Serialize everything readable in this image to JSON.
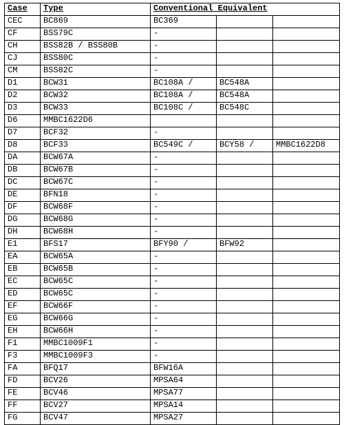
{
  "table": {
    "headers": {
      "case": "Case",
      "type": "Type",
      "conv": "Conventional Equivalent"
    },
    "rows": [
      {
        "case": "CEC",
        "type": "BC869",
        "conv": [
          "BC369",
          "",
          ""
        ]
      },
      {
        "case": "CF",
        "type": "BSS79C",
        "conv": [
          "-",
          "",
          ""
        ]
      },
      {
        "case": "CH",
        "type": "BSS82B / BSS80B",
        "conv": [
          "-",
          "",
          ""
        ]
      },
      {
        "case": "CJ",
        "type": "BSS80C",
        "conv": [
          "-",
          "",
          ""
        ]
      },
      {
        "case": "CM",
        "type": "BSS82C",
        "conv": [
          "-",
          "",
          ""
        ]
      },
      {
        "case": "D1",
        "type": "BCW31",
        "conv": [
          "BC108A /",
          "BC548A",
          ""
        ]
      },
      {
        "case": "D2",
        "type": "BCW32",
        "conv": [
          "BC108A /",
          "BC548A",
          ""
        ]
      },
      {
        "case": "D3",
        "type": "BCW33",
        "conv": [
          "BC108C /",
          "BC548C",
          ""
        ]
      },
      {
        "case": "D6",
        "type": "MMBC1622D6",
        "conv": [
          "",
          "",
          ""
        ]
      },
      {
        "case": "D7",
        "type": "BCF32",
        "conv": [
          "-",
          "",
          ""
        ]
      },
      {
        "case": "D8",
        "type": "BCF33",
        "conv": [
          "BC549C /",
          "BCY58 /",
          "MMBC1622D8"
        ]
      },
      {
        "case": "DA",
        "type": "BCW67A",
        "conv": [
          "-",
          "",
          ""
        ]
      },
      {
        "case": "DB",
        "type": "BCW67B",
        "conv": [
          "-",
          "",
          ""
        ]
      },
      {
        "case": "DC",
        "type": "BCW67C",
        "conv": [
          "-",
          "",
          ""
        ]
      },
      {
        "case": "DE",
        "type": "BFN18",
        "conv": [
          "-",
          "",
          ""
        ]
      },
      {
        "case": "DF",
        "type": "BCW68F",
        "conv": [
          "-",
          "",
          ""
        ]
      },
      {
        "case": "DG",
        "type": "BCW68G",
        "conv": [
          "-",
          "",
          ""
        ]
      },
      {
        "case": "DH",
        "type": "BCW68H",
        "conv": [
          "-",
          "",
          ""
        ]
      },
      {
        "case": "E1",
        "type": "BFS17",
        "conv": [
          "BFY90 /",
          "BFW92",
          ""
        ]
      },
      {
        "case": "EA",
        "type": "BCW65A",
        "conv": [
          "-",
          "",
          ""
        ]
      },
      {
        "case": "EB",
        "type": "BCW65B",
        "conv": [
          "-",
          "",
          ""
        ]
      },
      {
        "case": "EC",
        "type": "BCW65C",
        "conv": [
          "-",
          "",
          ""
        ]
      },
      {
        "case": "ED",
        "type": "BCW65C",
        "conv": [
          "-",
          "",
          ""
        ]
      },
      {
        "case": "EF",
        "type": "BCW66F",
        "conv": [
          "-",
          "",
          ""
        ]
      },
      {
        "case": "EG",
        "type": "BCW66G",
        "conv": [
          "-",
          "",
          ""
        ]
      },
      {
        "case": "EH",
        "type": "BCW66H",
        "conv": [
          "-",
          "",
          ""
        ]
      },
      {
        "case": "F1",
        "type": "MMBC1009F1",
        "conv": [
          "-",
          "",
          ""
        ]
      },
      {
        "case": "F3",
        "type": "MMBC1009F3",
        "conv": [
          "-",
          "",
          ""
        ]
      },
      {
        "case": "FA",
        "type": "BFQ17",
        "conv": [
          "BFW16A",
          "",
          ""
        ]
      },
      {
        "case": "FD",
        "type": "BCV26",
        "conv": [
          "MPSA64",
          "",
          ""
        ]
      },
      {
        "case": "FE",
        "type": "BCV46",
        "conv": [
          "MPSA77",
          "",
          ""
        ]
      },
      {
        "case": "FF",
        "type": "BCV27",
        "conv": [
          "MPSA14",
          "",
          ""
        ]
      },
      {
        "case": "FG",
        "type": "BCV47",
        "conv": [
          "MPSA27",
          "",
          ""
        ]
      }
    ]
  }
}
